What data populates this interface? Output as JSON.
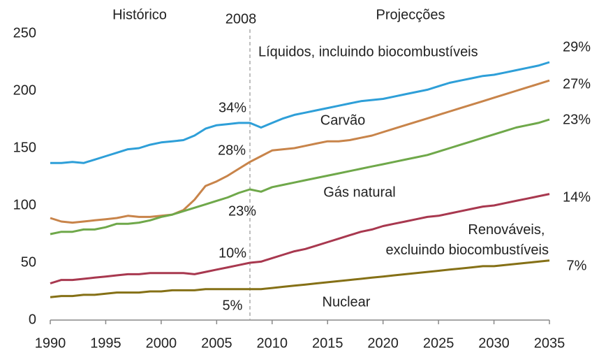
{
  "chart_data": {
    "type": "line",
    "x": [
      1990,
      1991,
      1992,
      1993,
      1994,
      1995,
      1996,
      1997,
      1998,
      1999,
      2000,
      2001,
      2002,
      2003,
      2004,
      2005,
      2006,
      2007,
      2008,
      2009,
      2010,
      2011,
      2012,
      2013,
      2014,
      2015,
      2016,
      2017,
      2018,
      2019,
      2020,
      2021,
      2022,
      2023,
      2024,
      2025,
      2026,
      2027,
      2028,
      2029,
      2030,
      2031,
      2032,
      2033,
      2034,
      2035
    ],
    "xlim": [
      1990,
      2035
    ],
    "xticks": [
      1990,
      1995,
      2000,
      2005,
      2010,
      2015,
      2020,
      2025,
      2030,
      2035
    ],
    "ylim": [
      0,
      250
    ],
    "yticks": [
      0,
      50,
      100,
      150,
      200,
      250
    ],
    "divider": 2008,
    "left_label": "Histórico",
    "right_label": "Projecções",
    "series": [
      {
        "name": "Líquidos, incluindo biocombustíveis",
        "color": "#2e9fd8",
        "label_2008": "34%",
        "label_2035": "29%",
        "values": [
          137,
          137,
          138,
          137,
          140,
          143,
          146,
          149,
          150,
          153,
          155,
          156,
          157,
          161,
          167,
          170,
          171,
          172,
          172,
          168,
          172,
          176,
          179,
          181,
          183,
          185,
          187,
          189,
          191,
          192,
          193,
          195,
          197,
          199,
          201,
          204,
          207,
          209,
          211,
          213,
          214,
          216,
          218,
          220,
          222,
          225
        ]
      },
      {
        "name": "Carvão",
        "color": "#c8844a",
        "label_2008": "28%",
        "label_2035": "27%",
        "values": [
          89,
          86,
          85,
          86,
          87,
          88,
          89,
          91,
          90,
          90,
          91,
          92,
          96,
          105,
          117,
          121,
          126,
          132,
          138,
          143,
          148,
          149,
          150,
          152,
          154,
          156,
          156,
          157,
          159,
          161,
          164,
          167,
          170,
          173,
          176,
          179,
          182,
          185,
          188,
          191,
          194,
          197,
          200,
          203,
          206,
          209
        ]
      },
      {
        "name": "Gás natural",
        "color": "#6fa84a",
        "label_2008": "23%",
        "label_2035": "23%",
        "values": [
          75,
          77,
          77,
          79,
          79,
          81,
          84,
          84,
          85,
          87,
          90,
          92,
          95,
          98,
          101,
          104,
          107,
          111,
          114,
          112,
          116,
          118,
          120,
          122,
          124,
          126,
          128,
          130,
          132,
          134,
          136,
          138,
          140,
          142,
          144,
          147,
          150,
          153,
          156,
          159,
          162,
          165,
          168,
          170,
          172,
          175
        ]
      },
      {
        "name": "Renováveis, excluindo biocombustíveis",
        "color": "#a8384f",
        "label_2008": "10%",
        "label_2035": "14%",
        "values": [
          32,
          35,
          35,
          36,
          37,
          38,
          39,
          40,
          40,
          41,
          41,
          41,
          41,
          40,
          42,
          44,
          46,
          48,
          50,
          51,
          54,
          57,
          60,
          62,
          65,
          68,
          71,
          74,
          77,
          79,
          82,
          84,
          86,
          88,
          90,
          91,
          93,
          95,
          97,
          99,
          100,
          102,
          104,
          106,
          108,
          110
        ]
      },
      {
        "name": "Nuclear",
        "color": "#857016",
        "label_2008": "5%",
        "label_2035": "7%",
        "values": [
          20,
          21,
          21,
          22,
          22,
          23,
          24,
          24,
          24,
          25,
          25,
          26,
          26,
          26,
          27,
          27,
          27,
          27,
          27,
          27,
          28,
          29,
          30,
          31,
          32,
          33,
          34,
          35,
          36,
          37,
          38,
          39,
          40,
          41,
          42,
          43,
          44,
          45,
          46,
          47,
          47,
          48,
          49,
          50,
          51,
          52
        ]
      }
    ]
  }
}
